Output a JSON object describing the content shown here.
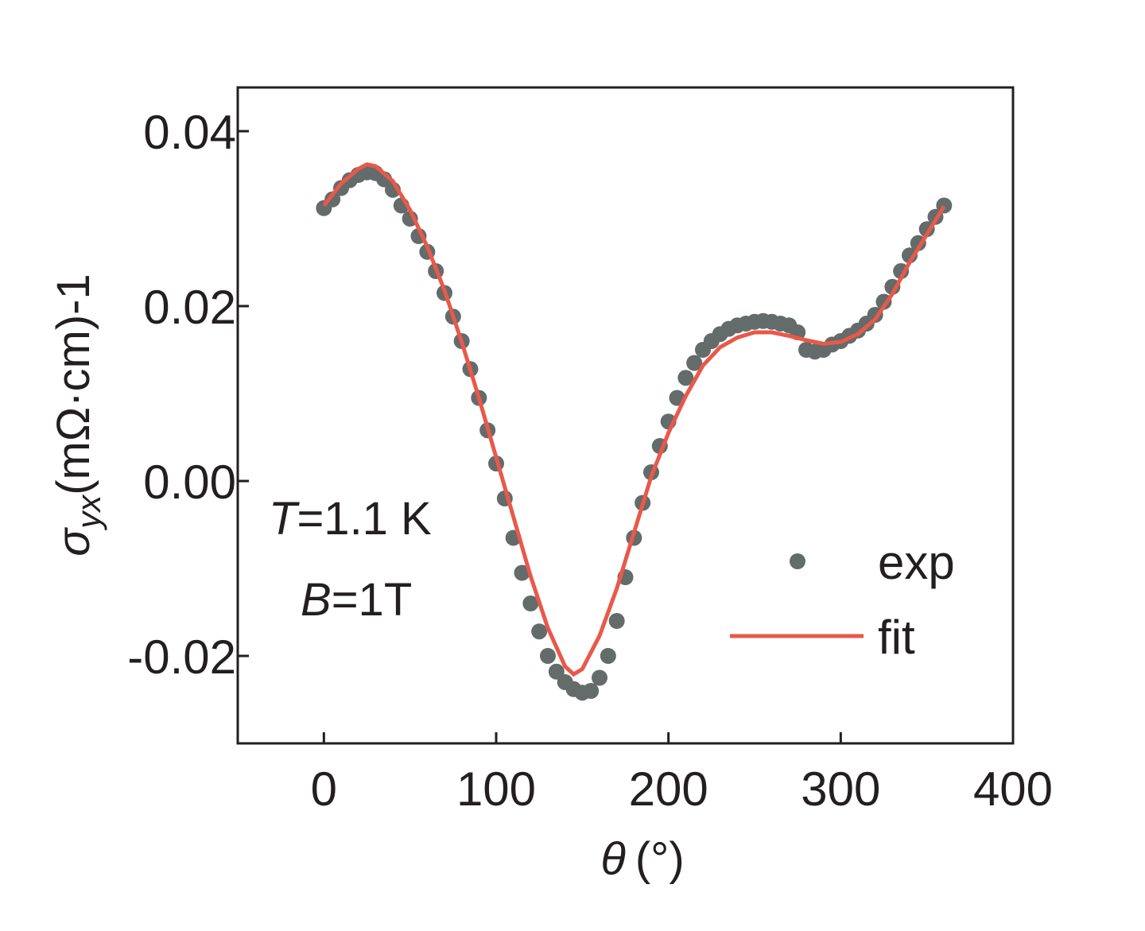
{
  "chart_data": {
    "type": "scatter",
    "y_label": {
      "symbol": "σ",
      "subscript": "yx",
      "unit": "(mΩ·cm)-1"
    },
    "x_label": {
      "symbol": "θ",
      "unit": "(°)"
    },
    "annotations": [
      {
        "symbol": "T",
        "text": "=1.1 K"
      },
      {
        "symbol": "B",
        "text": "=1T"
      }
    ],
    "xlim": [
      -50,
      400
    ],
    "xticks": [
      0,
      100,
      200,
      300,
      400
    ],
    "ylim": [
      -0.03,
      0.045
    ],
    "yticks": [
      -0.02,
      {
        "value": 0,
        "label": "0.00"
      },
      0.02,
      0.04
    ],
    "legend": "lower right",
    "series": [
      {
        "name": "exp",
        "type": "scatter",
        "color": "#636b6b",
        "x": [
          0,
          5,
          10,
          15,
          20,
          25,
          30,
          35,
          40,
          45,
          50,
          55,
          60,
          65,
          70,
          75,
          80,
          85,
          90,
          95,
          100,
          105,
          110,
          115,
          120,
          125,
          130,
          135,
          140,
          145,
          150,
          155,
          160,
          165,
          170,
          175,
          180,
          185,
          190,
          195,
          200,
          205,
          210,
          215,
          220,
          225,
          230,
          235,
          240,
          245,
          250,
          255,
          260,
          265,
          270,
          275,
          280,
          285,
          290,
          295,
          300,
          305,
          310,
          315,
          320,
          325,
          330,
          335,
          340,
          345,
          350,
          355,
          360
        ],
        "values": [
          0.0312,
          0.0322,
          0.0335,
          0.0344,
          0.035,
          0.0353,
          0.0352,
          0.0345,
          0.0333,
          0.0315,
          0.03,
          0.028,
          0.0262,
          0.024,
          0.0215,
          0.0188,
          0.016,
          0.0128,
          0.0095,
          0.0058,
          0.002,
          -0.002,
          -0.0065,
          -0.0105,
          -0.014,
          -0.0172,
          -0.02,
          -0.0218,
          -0.023,
          -0.0238,
          -0.0242,
          -0.024,
          -0.0225,
          -0.02,
          -0.016,
          -0.011,
          -0.0065,
          -0.0025,
          0.001,
          0.004,
          0.0068,
          0.0095,
          0.0118,
          0.0135,
          0.015,
          0.016,
          0.0168,
          0.0174,
          0.0178,
          0.018,
          0.0182,
          0.0183,
          0.0182,
          0.018,
          0.0178,
          0.017,
          0.015,
          0.0148,
          0.015,
          0.0156,
          0.016,
          0.0166,
          0.0172,
          0.018,
          0.019,
          0.0205,
          0.0222,
          0.024,
          0.0258,
          0.0272,
          0.0288,
          0.0302,
          0.0315
        ]
      },
      {
        "name": "fit",
        "type": "line",
        "color": "#e8594a",
        "x": [
          0,
          10,
          20,
          25,
          30,
          40,
          50,
          60,
          70,
          80,
          90,
          100,
          110,
          120,
          130,
          140,
          145,
          150,
          160,
          170,
          180,
          190,
          200,
          210,
          220,
          230,
          240,
          250,
          260,
          270,
          280,
          290,
          300,
          310,
          320,
          330,
          340,
          350,
          360
        ],
        "values": [
          0.0315,
          0.034,
          0.0357,
          0.0362,
          0.036,
          0.0343,
          0.031,
          0.0268,
          0.0218,
          0.0159,
          0.0095,
          0.0027,
          -0.0041,
          -0.0109,
          -0.0168,
          -0.0212,
          -0.0221,
          -0.0215,
          -0.0177,
          -0.0123,
          -0.0059,
          0.0005,
          0.0055,
          0.0097,
          0.0132,
          0.0153,
          0.0164,
          0.017,
          0.017,
          0.0166,
          0.0161,
          0.0157,
          0.0159,
          0.0168,
          0.0185,
          0.0214,
          0.025,
          0.0282,
          0.0314
        ]
      }
    ]
  }
}
